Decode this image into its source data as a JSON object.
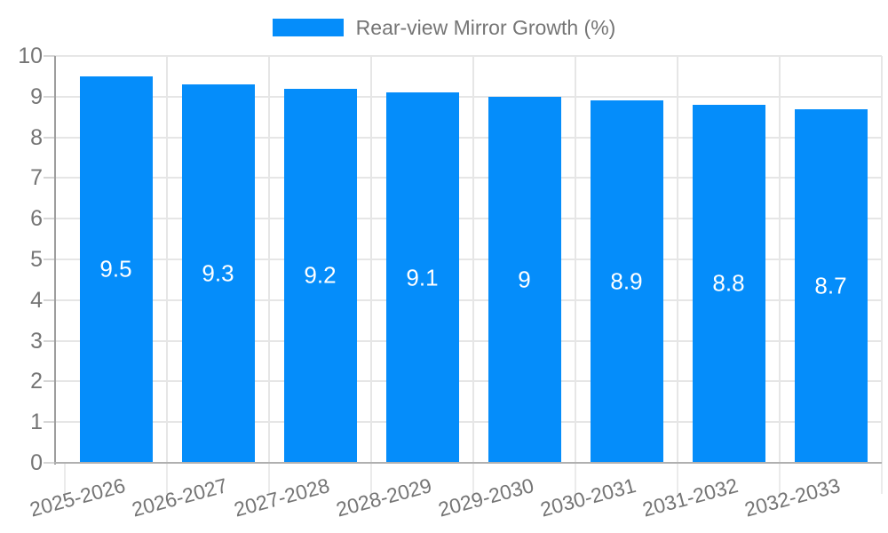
{
  "legend": {
    "label": "Rear-view Mirror Growth (%)",
    "swatch_color": "#058DFA"
  },
  "chart_data": {
    "type": "bar",
    "title": "Rear-view Mirror Growth (%)",
    "categories": [
      "2025-2026",
      "2026-2027",
      "2027-2028",
      "2028-2029",
      "2029-2030",
      "2030-2031",
      "2031-2032",
      "2032-2033"
    ],
    "values": [
      9.5,
      9.3,
      9.2,
      9.1,
      9,
      8.9,
      8.8,
      8.7
    ],
    "bar_value_labels": [
      "9.5",
      "9.3",
      "9.2",
      "9.1",
      "9",
      "8.9",
      "8.8",
      "8.7"
    ],
    "xlabel": "",
    "ylabel": "",
    "ylim": [
      0,
      10
    ],
    "yticks": [
      0,
      1,
      2,
      3,
      4,
      5,
      6,
      7,
      8,
      9,
      10
    ],
    "grid": true,
    "legend_position": "top-center",
    "x_label_rotation_deg": -15,
    "colors": {
      "bar": "#058DFA",
      "bar_value_label": "#FFFFFF",
      "axis_text": "#757575",
      "legend_text": "#757575",
      "gridline": "#E6E6E6",
      "y_tick": "#D6D6D6",
      "x_tick": "#EBEBEB",
      "y_axis_line": "#9E9E9E",
      "x_axis_line": "#B0B0B0",
      "background": "#FFFFFF"
    }
  }
}
